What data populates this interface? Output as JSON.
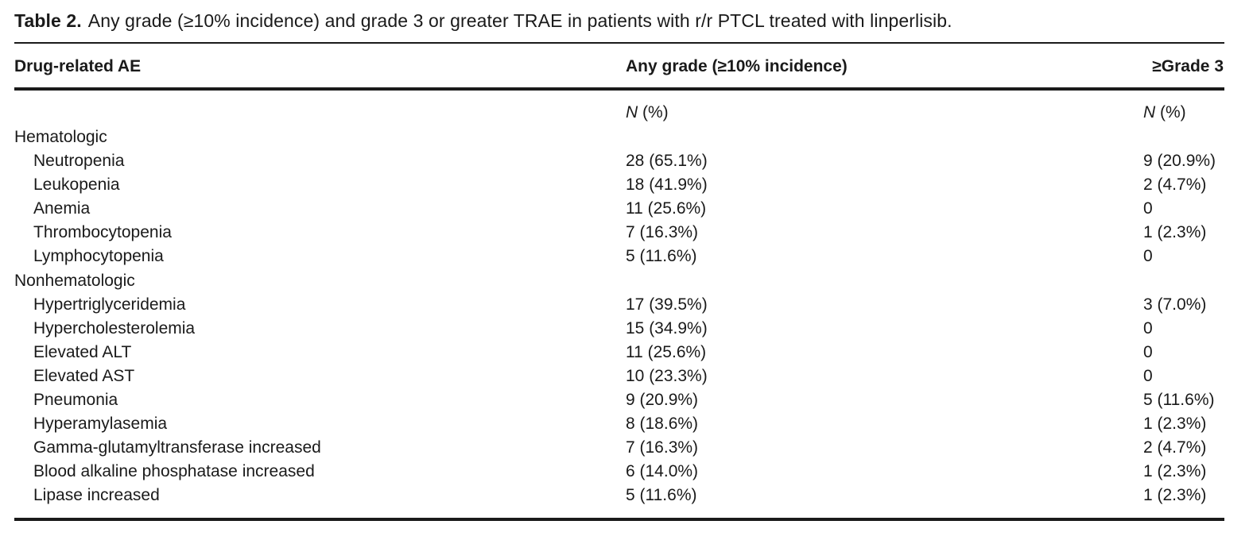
{
  "caption": {
    "label": "Table 2.",
    "text": "Any grade (≥10% incidence) and grade 3 or greater TRAE in patients with r/r PTCL treated with linperlisib."
  },
  "table": {
    "headers": {
      "ae": "Drug-related AE",
      "any_grade": "Any grade (≥10% incidence)",
      "grade3": "≥Grade 3"
    },
    "units": {
      "any_grade_n": "N",
      "any_grade_pct": " (%)",
      "grade3_n": "N",
      "grade3_pct": " (%)"
    },
    "rows": [
      {
        "type": "group",
        "ae": "Hematologic",
        "any_grade": "",
        "grade3": ""
      },
      {
        "type": "item",
        "ae": "Neutropenia",
        "any_grade": "28 (65.1%)",
        "grade3": "9 (20.9%)"
      },
      {
        "type": "item",
        "ae": "Leukopenia",
        "any_grade": "18 (41.9%)",
        "grade3": "2 (4.7%)"
      },
      {
        "type": "item",
        "ae": "Anemia",
        "any_grade": "11 (25.6%)",
        "grade3": "0"
      },
      {
        "type": "item",
        "ae": "Thrombocytopenia",
        "any_grade": "7 (16.3%)",
        "grade3": "1 (2.3%)"
      },
      {
        "type": "item",
        "ae": "Lymphocytopenia",
        "any_grade": "5 (11.6%)",
        "grade3": "0"
      },
      {
        "type": "group",
        "ae": "Nonhematologic",
        "any_grade": "",
        "grade3": ""
      },
      {
        "type": "item",
        "ae": "Hypertriglyceridemia",
        "any_grade": "17 (39.5%)",
        "grade3": "3 (7.0%)"
      },
      {
        "type": "item",
        "ae": "Hypercholesterolemia",
        "any_grade": "15 (34.9%)",
        "grade3": "0"
      },
      {
        "type": "item",
        "ae": "Elevated ALT",
        "any_grade": "11 (25.6%)",
        "grade3": "0"
      },
      {
        "type": "item",
        "ae": "Elevated AST",
        "any_grade": "10 (23.3%)",
        "grade3": "0"
      },
      {
        "type": "item",
        "ae": "Pneumonia",
        "any_grade": "9 (20.9%)",
        "grade3": "5 (11.6%)"
      },
      {
        "type": "item",
        "ae": "Hyperamylasemia",
        "any_grade": "8 (18.6%)",
        "grade3": "1 (2.3%)"
      },
      {
        "type": "item",
        "ae": "Gamma-glutamyltransferase increased",
        "any_grade": "7 (16.3%)",
        "grade3": "2 (4.7%)"
      },
      {
        "type": "item",
        "ae": "Blood alkaline phosphatase increased",
        "any_grade": "6 (14.0%)",
        "grade3": "1 (2.3%)"
      },
      {
        "type": "item",
        "ae": "Lipase increased",
        "any_grade": "5 (11.6%)",
        "grade3": "1 (2.3%)"
      }
    ]
  }
}
